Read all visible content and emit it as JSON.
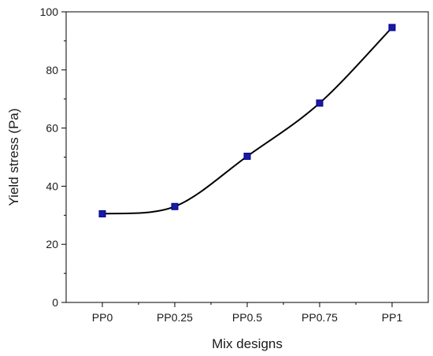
{
  "chart_data": {
    "type": "line",
    "xlabel": "Mix designs",
    "ylabel": "Yield stress (Pa)",
    "categories": [
      "PP0",
      "PP0.25",
      "PP0.5",
      "PP0.75",
      "PP1"
    ],
    "series": [
      {
        "values": [
          30.5,
          33.0,
          50.3,
          68.6,
          94.6
        ]
      }
    ],
    "ylim": [
      0,
      100
    ],
    "yticks": [
      0,
      20,
      40,
      60,
      80,
      100
    ],
    "grid": false,
    "legend": "none",
    "colors": {
      "line": "#000000",
      "marker": "#1a1aa6",
      "marker_edge": "#000080"
    }
  }
}
